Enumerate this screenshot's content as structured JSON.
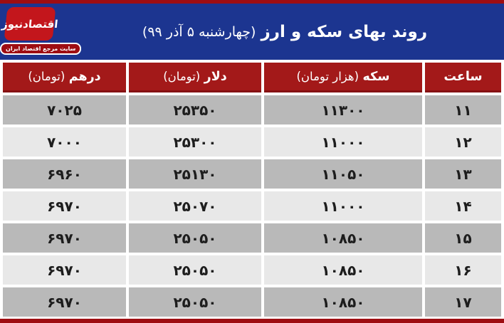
{
  "colors": {
    "strip_red": "#9e0d12",
    "masthead_blue": "#1c3590",
    "logo_red": "#c3161c",
    "table_header_red": "#a31919",
    "row_dark_gray": "#b9b9b9",
    "row_light_gray": "#e8e8e8"
  },
  "logo": {
    "name": "اقتصادنیوز",
    "tagline": "سایت مرجع اقتصاد ایران"
  },
  "header": {
    "title_main": "روند بهای سکه و ارز",
    "title_date": "(چهارشنبه ۵ آذر ۹۹)"
  },
  "table": {
    "columns": [
      {
        "label": "ساعت",
        "unit": ""
      },
      {
        "label": "سکه",
        "unit": "(هزار تومان)"
      },
      {
        "label": "دلار",
        "unit": "(تومان)"
      },
      {
        "label": "درهم",
        "unit": "(تومان)"
      }
    ],
    "rows": [
      {
        "hour": "۱۱",
        "coin": "۱۱۳۰۰",
        "dollar": "۲۵۳۵۰",
        "dirham": "۷۰۲۵"
      },
      {
        "hour": "۱۲",
        "coin": "۱۱۰۰۰",
        "dollar": "۲۵۳۰۰",
        "dirham": "۷۰۰۰"
      },
      {
        "hour": "۱۳",
        "coin": "۱۱۰۵۰",
        "dollar": "۲۵۱۳۰",
        "dirham": "۶۹۶۰"
      },
      {
        "hour": "۱۴",
        "coin": "۱۱۰۰۰",
        "dollar": "۲۵۰۷۰",
        "dirham": "۶۹۷۰"
      },
      {
        "hour": "۱۵",
        "coin": "۱۰۸۵۰",
        "dollar": "۲۵۰۵۰",
        "dirham": "۶۹۷۰"
      },
      {
        "hour": "۱۶",
        "coin": "۱۰۸۵۰",
        "dollar": "۲۵۰۵۰",
        "dirham": "۶۹۷۰"
      },
      {
        "hour": "۱۷",
        "coin": "۱۰۸۵۰",
        "dollar": "۲۵۰۵۰",
        "dirham": "۶۹۷۰"
      }
    ]
  },
  "chart_data": {
    "type": "table",
    "title": "روند بهای سکه و ارز (چهارشنبه ۵ آذر ۹۹)",
    "columns": [
      "ساعت",
      "سکه (هزار تومان)",
      "دلار (تومان)",
      "درهم (تومان)"
    ],
    "rows_numeric": [
      [
        11,
        11300,
        25350,
        7025
      ],
      [
        12,
        11000,
        25300,
        7000
      ],
      [
        13,
        11050,
        25130,
        6960
      ],
      [
        14,
        11000,
        25070,
        6970
      ],
      [
        15,
        10850,
        25050,
        6970
      ],
      [
        16,
        10850,
        25050,
        6970
      ],
      [
        17,
        10850,
        25050,
        6970
      ]
    ]
  }
}
